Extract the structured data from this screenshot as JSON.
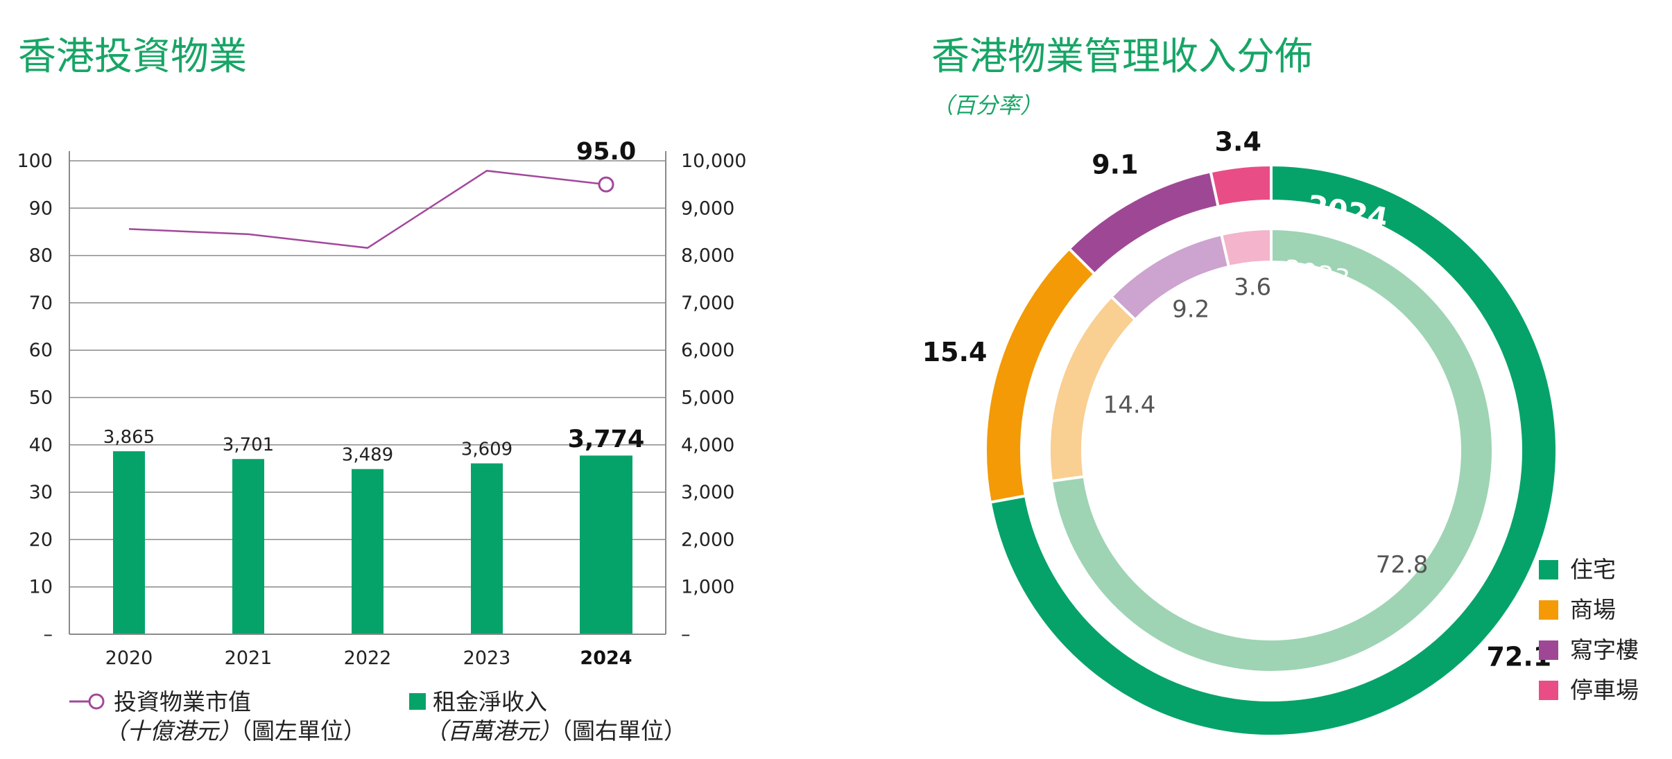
{
  "colors": {
    "title": "#17a566",
    "bar": "#05a36a",
    "line": "#a2479b",
    "residential": "#05a36a",
    "residential_light": "#9ed4b4",
    "mall": "#f39a06",
    "mall_light": "#f9cf92",
    "office": "#9e4895",
    "office_light": "#cda3cf",
    "parking": "#e84d86",
    "parking_light": "#f4b4cb"
  },
  "left_chart": {
    "title": "香港投資物業",
    "left_axis_ticks": [
      "–",
      "10",
      "20",
      "30",
      "40",
      "50",
      "60",
      "70",
      "80",
      "90",
      "100"
    ],
    "right_axis_ticks": [
      "–",
      "1,000",
      "2,000",
      "3,000",
      "4,000",
      "5,000",
      "6,000",
      "7,000",
      "8,000",
      "9,000",
      "10,000"
    ],
    "legend": {
      "line_label": "投資物業市值",
      "line_unit_italic": "（十億港元）",
      "line_unit_note": "（圖左單位）",
      "bar_label": "租金淨收入",
      "bar_unit_italic": "（百萬港元）",
      "bar_unit_note": "（圖右單位）"
    }
  },
  "right_chart": {
    "title": "香港物業管理收入分佈",
    "subtitle": "（百分率）",
    "legend": [
      {
        "label": "住宅",
        "color": "#05a36a"
      },
      {
        "label": "商場",
        "color": "#f39a06"
      },
      {
        "label": "寫字樓",
        "color": "#9e4895"
      },
      {
        "label": "停車場",
        "color": "#e84d86"
      }
    ]
  },
  "chart_data": [
    {
      "type": "bar",
      "title": "香港投資物業",
      "categories": [
        "2020",
        "2021",
        "2022",
        "2023",
        "2024"
      ],
      "highlight_category": "2024",
      "series": [
        {
          "name": "租金淨收入（百萬港元）（圖右單位）",
          "type": "bar",
          "axis": "right",
          "values": [
            3865,
            3701,
            3489,
            3609,
            3774
          ],
          "value_labels": [
            "3,865",
            "3,701",
            "3,489",
            "3,609",
            "3,774"
          ]
        },
        {
          "name": "投資物業市值（十億港元）（圖左單位）",
          "type": "line",
          "axis": "left",
          "values": [
            85.6,
            84.5,
            81.6,
            97.9,
            95.0
          ],
          "end_label": "95.0"
        }
      ],
      "ylim_left": [
        0,
        100
      ],
      "ylim_right": [
        0,
        10000
      ],
      "grid": true
    },
    {
      "type": "pie",
      "title": "香港物業管理收入分佈",
      "subtitle": "（百分率）",
      "rings": [
        {
          "year": "2024",
          "labels": [
            "住宅",
            "商場",
            "寫字樓",
            "停車場"
          ],
          "values": [
            72.1,
            15.4,
            9.1,
            3.4
          ]
        },
        {
          "year": "2023",
          "labels": [
            "住宅",
            "商場",
            "寫字樓",
            "停車場"
          ],
          "values": [
            72.8,
            14.4,
            9.2,
            3.6
          ]
        }
      ]
    }
  ]
}
